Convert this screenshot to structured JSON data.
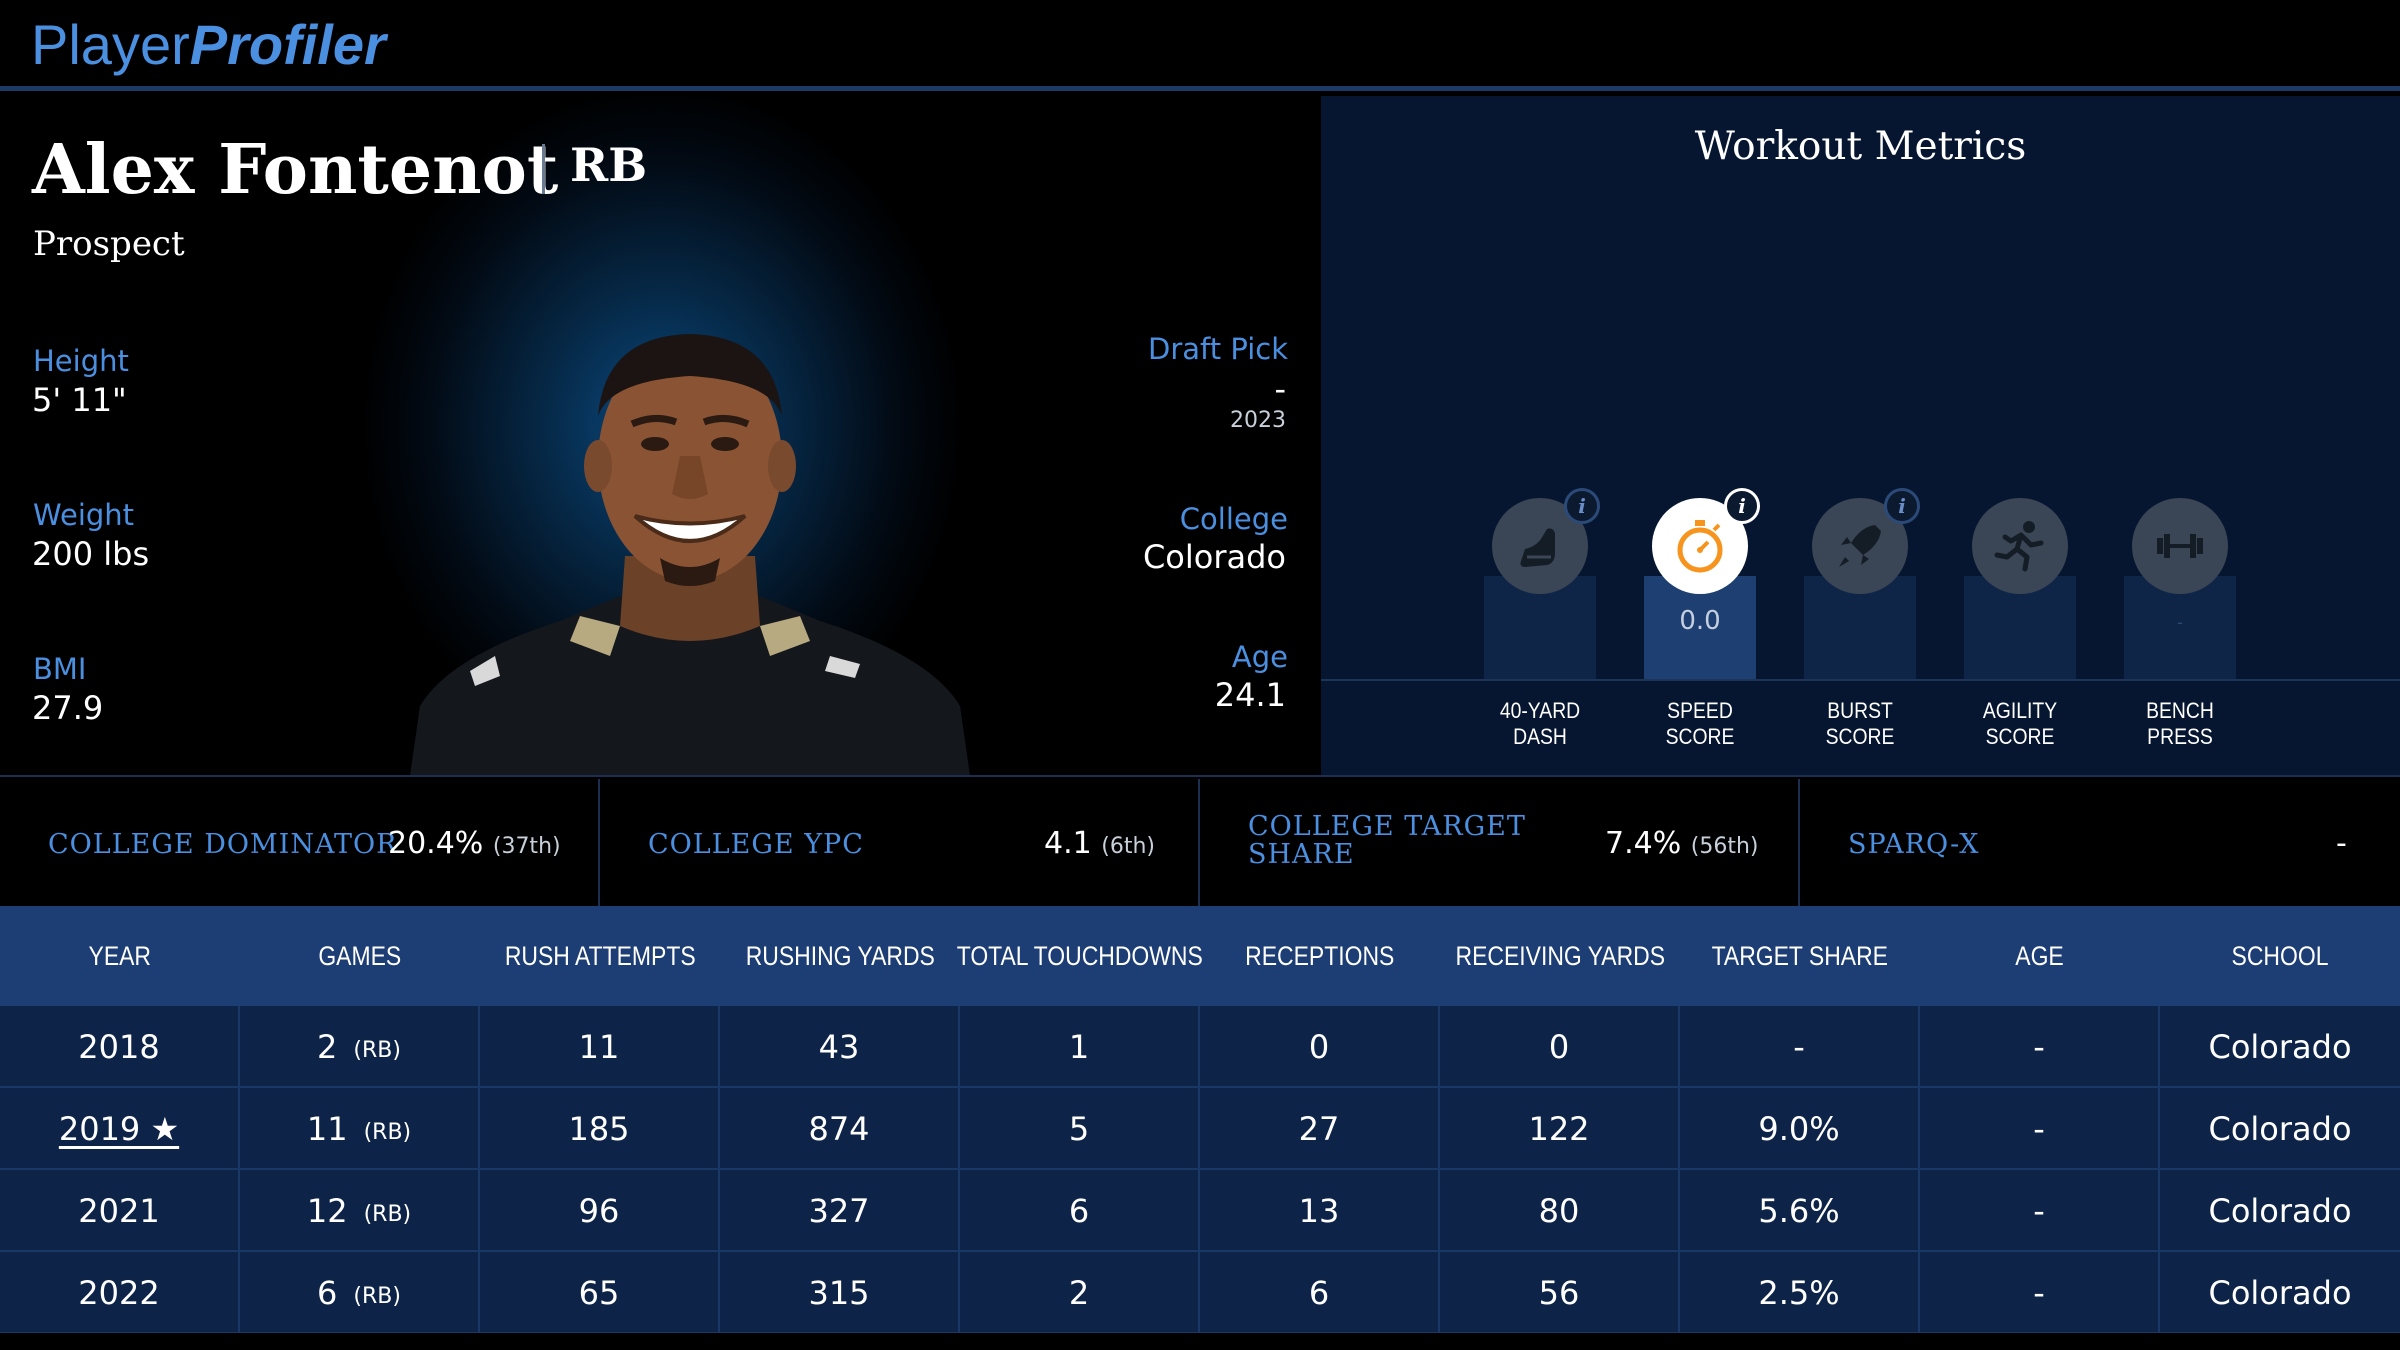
{
  "brand": {
    "part1": "Player",
    "part2": "Profiler"
  },
  "player": {
    "name": "Alex Fontenot",
    "position": "RB",
    "status": "Prospect",
    "height_label": "Height",
    "height": "5' 11\"",
    "weight_label": "Weight",
    "weight": "200 lbs",
    "bmi_label": "BMI",
    "bmi": "27.9",
    "draft_label": "Draft Pick",
    "draft_pick": "-",
    "draft_year": "2023",
    "college_label": "College",
    "college": "Colorado",
    "age_label": "Age",
    "age": "24.1"
  },
  "workout": {
    "title": "Workout Metrics",
    "metrics": [
      {
        "line1": "40-YARD",
        "line2": "DASH",
        "value": "",
        "icon": "shoe-icon",
        "has_info": true
      },
      {
        "line1": "SPEED",
        "line2": "SCORE",
        "value": "0.0",
        "icon": "stopwatch-icon",
        "has_info": true,
        "active": true
      },
      {
        "line1": "BURST",
        "line2": "SCORE",
        "value": "",
        "icon": "rocket-icon",
        "has_info": true
      },
      {
        "line1": "AGILITY",
        "line2": "SCORE",
        "value": "",
        "icon": "runner-icon",
        "has_info": false
      },
      {
        "line1": "BENCH",
        "line2": "PRESS",
        "value": "-",
        "icon": "barbell-icon",
        "has_info": false
      }
    ]
  },
  "college_metrics": [
    {
      "label_line1": "COLLEGE DOMINATOR",
      "label_line2": "",
      "value": "20.4%",
      "rank": "(37th)"
    },
    {
      "label_line1": "COLLEGE YPC",
      "label_line2": "",
      "value": "4.1",
      "rank": "(6th)"
    },
    {
      "label_line1": "COLLEGE TARGET",
      "label_line2": "SHARE",
      "value": "7.4%",
      "rank": "(56th)"
    },
    {
      "label_line1": "SPARQ-X",
      "label_line2": "",
      "value": "-",
      "rank": ""
    }
  ],
  "table": {
    "headers": [
      "YEAR",
      "GAMES",
      "RUSH ATTEMPTS",
      "RUSHING YARDS",
      "TOTAL TOUCHDOWNS",
      "RECEPTIONS",
      "RECEIVING YARDS",
      "TARGET SHARE",
      "AGE",
      "SCHOOL"
    ],
    "rows": [
      {
        "year": "2018",
        "games": "2",
        "pos": "(RB)",
        "rush_att": "11",
        "rush_yds": "43",
        "td": "1",
        "rec": "0",
        "rec_yds": "0",
        "tgt": "-",
        "age": "-",
        "school": "Colorado"
      },
      {
        "year": "2019 ★",
        "games": "11",
        "pos": "(RB)",
        "rush_att": "185",
        "rush_yds": "874",
        "td": "5",
        "rec": "27",
        "rec_yds": "122",
        "tgt": "9.0%",
        "age": "-",
        "school": "Colorado"
      },
      {
        "year": "2021",
        "games": "12",
        "pos": "(RB)",
        "rush_att": "96",
        "rush_yds": "327",
        "td": "6",
        "rec": "13",
        "rec_yds": "80",
        "tgt": "5.6%",
        "age": "-",
        "school": "Colorado"
      },
      {
        "year": "2022",
        "games": "6",
        "pos": "(RB)",
        "rush_att": "65",
        "rush_yds": "315",
        "td": "2",
        "rec": "6",
        "rec_yds": "56",
        "tgt": "2.5%",
        "age": "-",
        "school": "Colorado"
      }
    ]
  },
  "colors": {
    "accent": "#4a8fe0",
    "header_bar": "#1d3d75",
    "active_icon": "#f7941d"
  }
}
